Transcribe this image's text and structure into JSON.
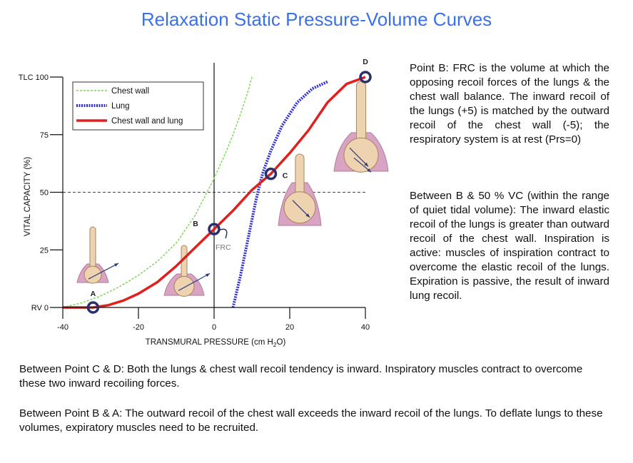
{
  "title": "Relaxation Static Pressure-Volume Curves",
  "colors": {
    "title": "#3b71e6",
    "chest_wall": "#7ed957",
    "lung": "#3030d8",
    "chest_wall_and_lung": "#e0201e",
    "point_marker": "#2a2f6e",
    "thorax_fill": "#d9a3c4",
    "lung_fill": "#eed3b0"
  },
  "chart_data": {
    "type": "line",
    "xlabel_main": "TRANSMURAL PRESSURE (cm H",
    "xlabel_sub": "2",
    "xlabel_tail": "O)",
    "ylabel": "VITAL CAPACITY (%)",
    "xlim": [
      -40,
      40
    ],
    "ylim": [
      0,
      100
    ],
    "x_ticks": [
      -40,
      -20,
      0,
      20,
      40
    ],
    "x_tick_labels": [
      "-40",
      "-20",
      "0",
      "20",
      "40"
    ],
    "y_ticks": [
      0,
      25,
      50,
      75,
      100
    ],
    "y_tick_labels": [
      "RV 0",
      "25",
      "50",
      "75",
      "TLC 100"
    ],
    "legend": {
      "placement": "top-left",
      "entries": [
        "Chest wall",
        "Lung",
        "Chest wall and lung"
      ]
    },
    "series": [
      {
        "name": "Chest wall",
        "style": "dashed",
        "x": [
          -40,
          -35,
          -30,
          -25,
          -20,
          -15,
          -10,
          -5,
          0,
          3,
          5,
          7,
          9,
          10
        ],
        "y": [
          0,
          2,
          5,
          9,
          14,
          20,
          28,
          40,
          56,
          67,
          75,
          84,
          94,
          100
        ]
      },
      {
        "name": "Lung",
        "style": "hatched",
        "x": [
          5,
          6,
          7,
          8,
          9,
          10,
          11,
          12,
          13,
          15,
          18,
          22,
          26,
          30
        ],
        "y": [
          0,
          7,
          14,
          22,
          30,
          38,
          46,
          53,
          59,
          68,
          79,
          89,
          95,
          98
        ]
      },
      {
        "name": "Chest wall and lung",
        "style": "solid",
        "x": [
          -40,
          -32,
          -28,
          -24,
          -20,
          -15,
          -10,
          -5,
          0,
          5,
          10,
          15,
          20,
          25,
          30,
          35,
          40
        ],
        "y": [
          0,
          0,
          1,
          3,
          6,
          11,
          18,
          26,
          34,
          42,
          51,
          58,
          67,
          77,
          89,
          97,
          100
        ]
      }
    ],
    "reference_lines": [
      {
        "type": "horizontal",
        "y": 50,
        "style": "dashed"
      },
      {
        "type": "vertical",
        "x": 0,
        "style": "solid"
      }
    ],
    "points": [
      {
        "label": "A",
        "x": -32,
        "y": 0
      },
      {
        "label": "B",
        "x": 0,
        "y": 34
      },
      {
        "label": "C",
        "x": 15,
        "y": 58
      },
      {
        "label": "D",
        "x": 40,
        "y": 100
      }
    ],
    "annotations": [
      "FRC"
    ]
  },
  "point_b_text": "Point B:  FRC is the volume at which the opposing recoil forces of the lungs & the chest wall balance. The inward recoil of the lungs (+5) is matched by the outward recoil of the chest wall (-5); the respiratory system is at rest (Prs=0)",
  "b50_text": "Between B & 50 % VC (within the range of quiet tidal volume): The inward elastic recoil of the lungs is greater than outward recoil of the chest wall. Inspiration is active: muscles of inspiration contract to overcome the elastic recoil of the lungs. Expiration is passive, the result of inward lung recoil.",
  "cd_lead": "Between Point C & D:",
  "cd_text": " Both the lungs & chest wall recoil  tendency is inward. Inspiratory muscles contract to overcome these two inward recoiling forces.",
  "ba_lead": "Between Point B & A:",
  "ba_text": " The outward recoil of the chest wall exceeds the inward recoil of the lungs. To deflate lungs to these volumes, expiratory muscles need to be recruited."
}
